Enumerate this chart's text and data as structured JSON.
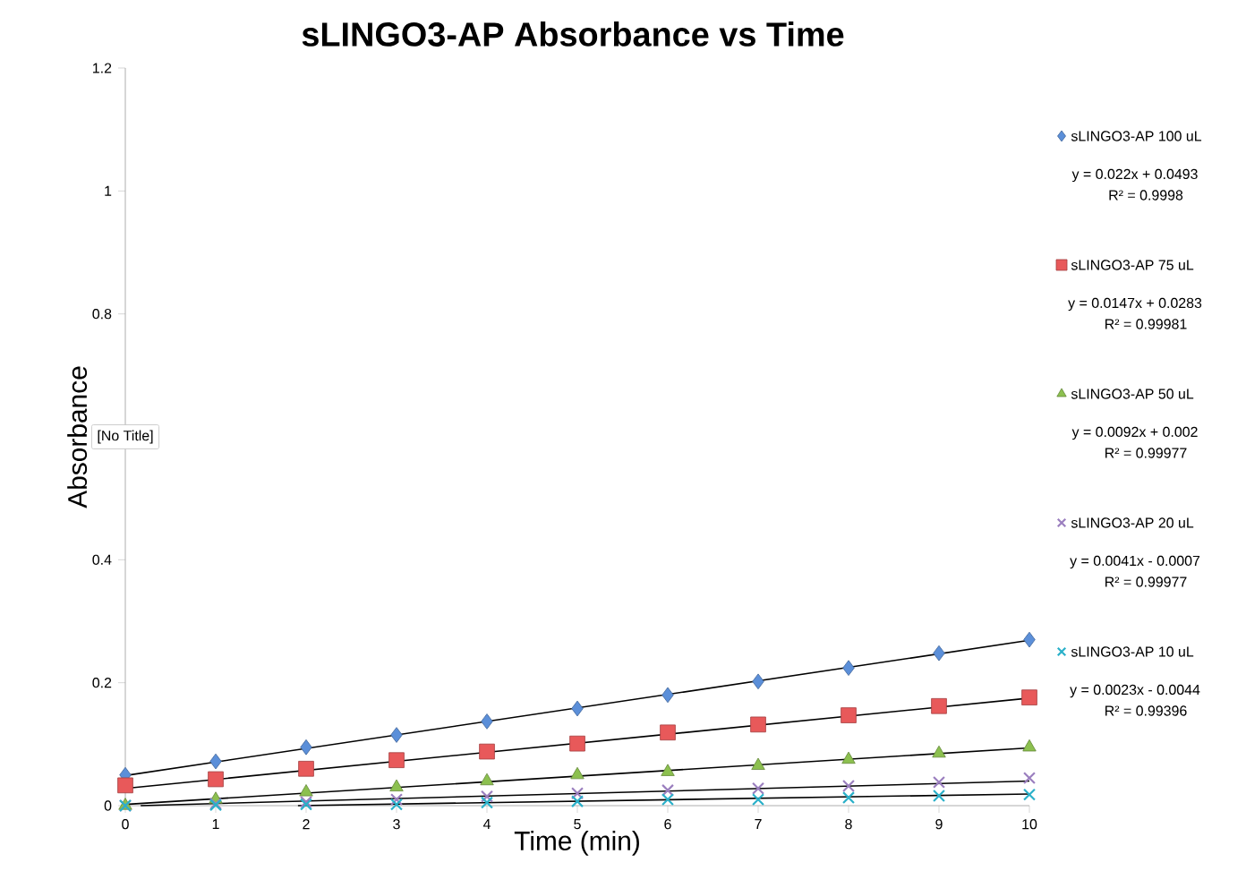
{
  "chart_data": {
    "type": "scatter",
    "title": "sLINGO3-AP Absorbance vs Time",
    "xlabel": "Time (min)",
    "ylabel": "Absorbance",
    "x": [
      0,
      1,
      2,
      3,
      4,
      5,
      6,
      7,
      8,
      9,
      10
    ],
    "series": [
      {
        "type": "line",
        "color": "#000000",
        "marker": "none",
        "line_style": "solid",
        "x": [
          0,
          10
        ],
        "values": [
          0.049,
          0.269
        ]
      },
      {
        "type": "line",
        "color": "#000000",
        "marker": "none",
        "line_style": "solid",
        "x": [
          0,
          10
        ],
        "values": [
          0.028,
          0.175
        ]
      },
      {
        "type": "line",
        "color": "#000000",
        "marker": "none",
        "line_style": "solid",
        "x": [
          0,
          10
        ],
        "values": [
          0.002,
          0.094
        ]
      },
      {
        "type": "line",
        "color": "#000000",
        "marker": "none",
        "line_style": "solid",
        "x": [
          0.17,
          10
        ],
        "values": [
          0.0,
          0.04
        ]
      },
      {
        "type": "line",
        "color": "#000000",
        "marker": "none",
        "line_style": "solid",
        "x": [
          1.91,
          10
        ],
        "values": [
          0.0,
          0.019
        ]
      },
      {
        "name": "sLINGO3-AP 100 uL",
        "color": "#5b8fd9",
        "marker": "diamond",
        "values": [
          0.05,
          0.072,
          0.095,
          0.115,
          0.137,
          0.158,
          0.18,
          0.202,
          0.224,
          0.248,
          0.27
        ]
      },
      {
        "name": "sLINGO3-AP 75 uL",
        "color": "#e8595a",
        "marker": "square",
        "values": [
          0.033,
          0.043,
          0.06,
          0.074,
          0.088,
          0.101,
          0.119,
          0.132,
          0.147,
          0.162,
          0.176
        ]
      },
      {
        "name": "sLINGO3-AP 50 uL",
        "color": "#8cc04f",
        "marker": "triangle",
        "values": [
          0.0,
          0.01,
          0.022,
          0.03,
          0.04,
          0.05,
          0.055,
          0.065,
          0.075,
          0.085,
          0.095
        ]
      },
      {
        "name": "sLINGO3-AP 20 uL",
        "color": "#9b7fbf",
        "marker": "cross",
        "values": [
          0.0,
          0.003,
          0.006,
          0.01,
          0.015,
          0.02,
          0.025,
          0.028,
          0.032,
          0.038,
          0.045
        ]
      },
      {
        "name": "sLINGO3-AP 10 uL",
        "color": "#2ab0c9",
        "marker": "cross",
        "values": [
          0.0,
          0.001,
          0.002,
          0.002,
          0.005,
          0.007,
          0.01,
          0.01,
          0.013,
          0.016,
          0.018
        ]
      }
    ],
    "xlim": [
      0,
      10
    ],
    "ylim": [
      0,
      1.2
    ],
    "xticks": [
      0,
      1,
      2,
      3,
      4,
      5,
      6,
      7,
      8,
      9,
      10
    ],
    "yticks": [
      0,
      0.2,
      0.4,
      {
        "value": 0.6,
        "label": null
      },
      0.8,
      1,
      1.2
    ],
    "grid": false,
    "legend": "right",
    "annotations": [
      "[No Title]",
      "y = 0.022x + 0.0493",
      "R² = 0.9998",
      "y = 0.0147x + 0.0283",
      "R² = 0.99981",
      "y = 0.0092x + 0.002",
      "R² = 0.99977",
      "y = 0.0041x - 0.0007",
      "R² = 0.99977",
      "y = 0.0023x - 0.0044",
      "R² = 0.99396"
    ]
  }
}
